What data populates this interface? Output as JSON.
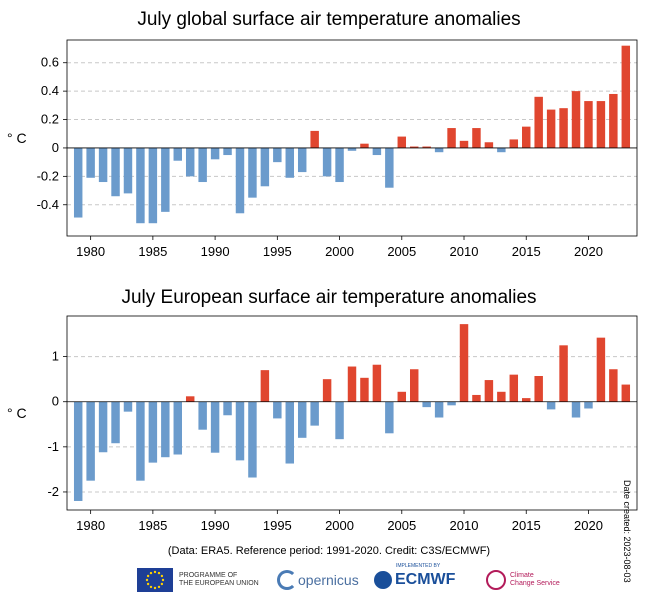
{
  "chart_data": [
    {
      "type": "bar",
      "title": "July global surface air temperature anomalies",
      "ylabel": "° C",
      "ylim": [
        -0.62,
        0.76
      ],
      "yticks": [
        -0.4,
        -0.2,
        0,
        0.2,
        0.4,
        0.6
      ],
      "ytick_labels": [
        "-0.4",
        "-0.2",
        "0",
        "0.2",
        "0.4",
        "0.6"
      ],
      "xticks": [
        1980,
        1985,
        1990,
        1995,
        2000,
        2005,
        2010,
        2015,
        2020
      ],
      "xlim": [
        1978.1,
        2023.9
      ],
      "positive_color": "#e0462f",
      "negative_color": "#6b9bcc",
      "grid": "horizontal dashed",
      "x": [
        1979,
        1980,
        1981,
        1982,
        1983,
        1984,
        1985,
        1986,
        1987,
        1988,
        1989,
        1990,
        1991,
        1992,
        1993,
        1994,
        1995,
        1996,
        1997,
        1998,
        1999,
        2000,
        2001,
        2002,
        2003,
        2004,
        2005,
        2006,
        2007,
        2008,
        2009,
        2010,
        2011,
        2012,
        2013,
        2014,
        2015,
        2016,
        2017,
        2018,
        2019,
        2020,
        2021,
        2022,
        2023
      ],
      "values": [
        -0.49,
        -0.21,
        -0.24,
        -0.34,
        -0.32,
        -0.53,
        -0.53,
        -0.45,
        -0.09,
        -0.2,
        -0.24,
        -0.08,
        -0.05,
        -0.46,
        -0.35,
        -0.27,
        -0.1,
        -0.21,
        -0.17,
        0.12,
        -0.2,
        -0.24,
        -0.02,
        0.03,
        -0.05,
        -0.28,
        0.08,
        0.01,
        0.01,
        -0.03,
        0.14,
        0.05,
        0.14,
        0.04,
        -0.03,
        0.06,
        0.15,
        0.36,
        0.27,
        0.28,
        0.4,
        0.33,
        0.33,
        0.38,
        0.72
      ]
    },
    {
      "type": "bar",
      "title": "July European surface air temperature anomalies",
      "ylabel": "° C",
      "ylim": [
        -2.4,
        1.9
      ],
      "yticks": [
        -2,
        -1,
        0,
        1
      ],
      "ytick_labels": [
        "-2",
        "-1",
        "0",
        "1"
      ],
      "xticks": [
        1980,
        1985,
        1990,
        1995,
        2000,
        2005,
        2010,
        2015,
        2020
      ],
      "xlim": [
        1978.1,
        2023.9
      ],
      "positive_color": "#e0462f",
      "negative_color": "#6b9bcc",
      "grid": "horizontal dashed",
      "x": [
        1979,
        1980,
        1981,
        1982,
        1983,
        1984,
        1985,
        1986,
        1987,
        1988,
        1989,
        1990,
        1991,
        1992,
        1993,
        1994,
        1995,
        1996,
        1997,
        1998,
        1999,
        2000,
        2001,
        2002,
        2003,
        2004,
        2005,
        2006,
        2007,
        2008,
        2009,
        2010,
        2011,
        2012,
        2013,
        2014,
        2015,
        2016,
        2017,
        2018,
        2019,
        2020,
        2021,
        2022,
        2023
      ],
      "values": [
        -2.2,
        -1.75,
        -1.12,
        -0.92,
        -0.22,
        -1.75,
        -1.35,
        -1.23,
        -1.17,
        0.12,
        -0.62,
        -1.13,
        -0.3,
        -1.3,
        -1.68,
        0.7,
        -0.37,
        -1.37,
        -0.8,
        -0.53,
        0.5,
        -0.83,
        0.78,
        0.53,
        0.82,
        -0.7,
        0.22,
        0.72,
        -0.12,
        -0.35,
        -0.08,
        1.72,
        0.15,
        0.48,
        0.22,
        0.6,
        0.08,
        0.57,
        -0.17,
        1.25,
        -0.35,
        -0.15,
        1.42,
        0.72,
        0.38
      ]
    }
  ],
  "footer": {
    "credit": "(Data: ERA5.  Reference period: 1991-2020.  Credit: C3S/ECMWF)",
    "date_created": "Date created: 2023-08-03"
  },
  "logos": {
    "eu_line1": "PROGRAMME OF",
    "eu_line2": "THE EUROPEAN UNION",
    "copernicus": "opernicus",
    "ecmwf_small": "IMPLEMENTED BY",
    "ecmwf": "ECMWF",
    "c3s_line1": "Climate",
    "c3s_line2": "Change Service"
  }
}
